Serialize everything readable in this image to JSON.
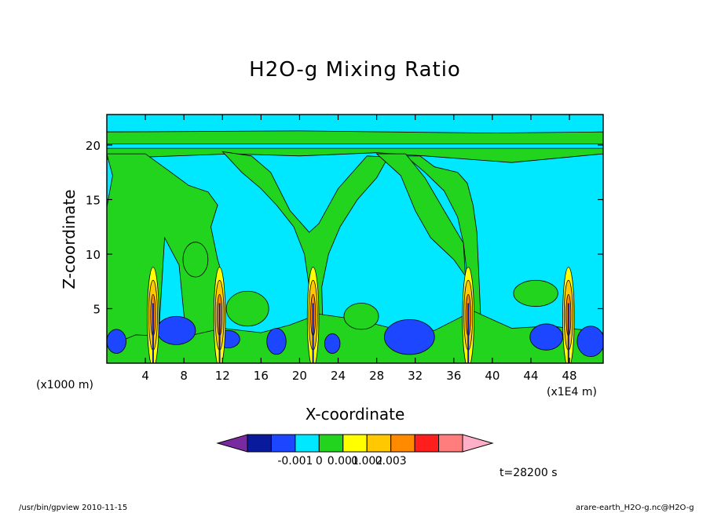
{
  "chart_data": {
    "type": "heatmap",
    "title": "H2O-g Mixing Ratio",
    "xlabel": "X-coordinate",
    "ylabel": "Z-coordinate",
    "x_unit": "(x1000 m)",
    "x_scale_note": "(x1E4 m)",
    "xlim": [
      0,
      51.5
    ],
    "ylim": [
      0,
      22.8
    ],
    "x_ticks": [
      "4",
      "8",
      "12",
      "16",
      "20",
      "24",
      "28",
      "32",
      "36",
      "40",
      "44",
      "48"
    ],
    "y_ticks": [
      "5",
      "10",
      "15",
      "20"
    ],
    "colorbar": {
      "colors": [
        "#7a2aa0",
        "#0a1a9c",
        "#1c46ff",
        "#00e8ff",
        "#22d41e",
        "#ffff00",
        "#ffc800",
        "#ff8a00",
        "#ff1e1e",
        "#ff7d7d",
        "#ffb0c8"
      ],
      "tick_labels": [
        "-0.001",
        "0",
        "0.001",
        "0.002",
        "0.003"
      ]
    },
    "background_class": "#00e8ff",
    "layers": [
      {
        "class": "green",
        "color": "#22d41e",
        "description": "moist upper layer and plumes"
      },
      {
        "class": "blue",
        "color": "#1c46ff",
        "description": "negative patches near surface"
      }
    ],
    "plumes_x": [
      4.8,
      11.7,
      21.4,
      37.5,
      47.9
    ],
    "time_label": "t=28200 s"
  },
  "footer": {
    "left": "/usr/bin/gpview   2010-11-15",
    "right": "arare-earth_H2O-g.nc@H2O-g"
  }
}
